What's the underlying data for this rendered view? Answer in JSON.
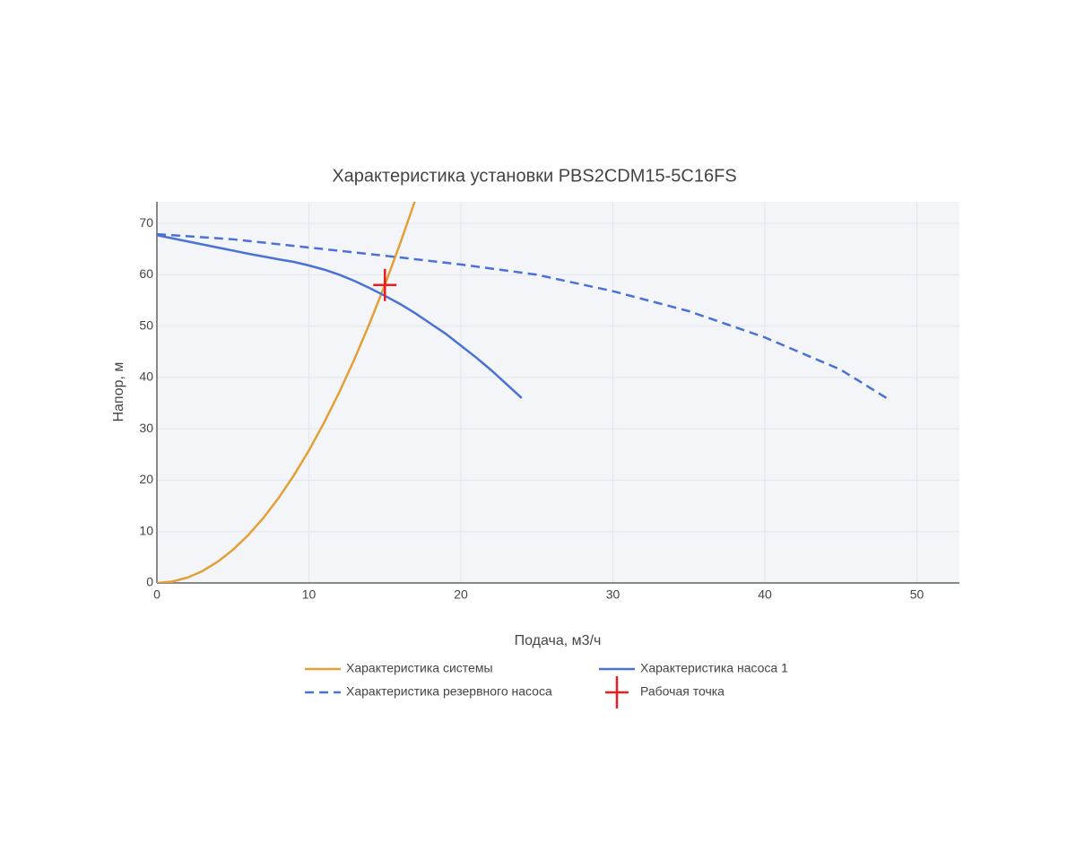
{
  "chart_data": {
    "type": "line",
    "title": "Характеристика установки PBS2CDM15-5C16FS",
    "x_label": "Подача, м3/ч",
    "y_label": "Напор, м",
    "xlim": [
      0,
      52.8
    ],
    "ylim": [
      0,
      74.2
    ],
    "xticks": [
      0,
      10,
      20,
      30,
      40,
      50
    ],
    "yticks": [
      0,
      10,
      20,
      30,
      40,
      50,
      60,
      70
    ],
    "grid": true,
    "legend": "bottom",
    "series": [
      {
        "name": "Характеристика системы",
        "color": "#e2a035",
        "dash": false,
        "x": [
          0,
          1,
          2,
          3,
          4,
          5,
          6,
          7,
          8,
          9,
          10,
          11,
          12,
          13,
          14,
          15,
          16,
          17
        ],
        "values": [
          0,
          0.26,
          1.03,
          2.32,
          4.13,
          6.45,
          9.29,
          12.64,
          16.51,
          20.9,
          25.8,
          31.22,
          37.15,
          43.6,
          50.57,
          58.05,
          66.05,
          74.56
        ]
      },
      {
        "name": "Характеристика насоса 1",
        "color": "#4a72d6",
        "dash": false,
        "x": [
          0,
          2,
          4,
          6,
          8,
          9,
          10,
          11,
          12,
          13,
          14,
          15,
          16,
          17,
          18,
          19,
          20,
          21,
          22,
          23,
          24
        ],
        "values": [
          67.7,
          66.5,
          65.3,
          64.1,
          63,
          62.5,
          61.8,
          61,
          60,
          58.8,
          57.4,
          55.9,
          54.3,
          52.5,
          50.5,
          48.5,
          46.2,
          43.9,
          41.4,
          38.7,
          36
        ]
      },
      {
        "name": "Характеристика резервного насоса",
        "color": "#4a72d6",
        "dash": true,
        "x": [
          0,
          5,
          10,
          15,
          20,
          25,
          30,
          35,
          40,
          45,
          48
        ],
        "values": [
          67.9,
          66.9,
          65.3,
          63.7,
          62,
          60,
          56.8,
          52.9,
          47.8,
          41.5,
          36
        ]
      },
      {
        "name": "Рабочая точка",
        "color": "#ee1c1c",
        "marker": "cross",
        "x": [
          15
        ],
        "values": [
          58
        ]
      }
    ]
  }
}
